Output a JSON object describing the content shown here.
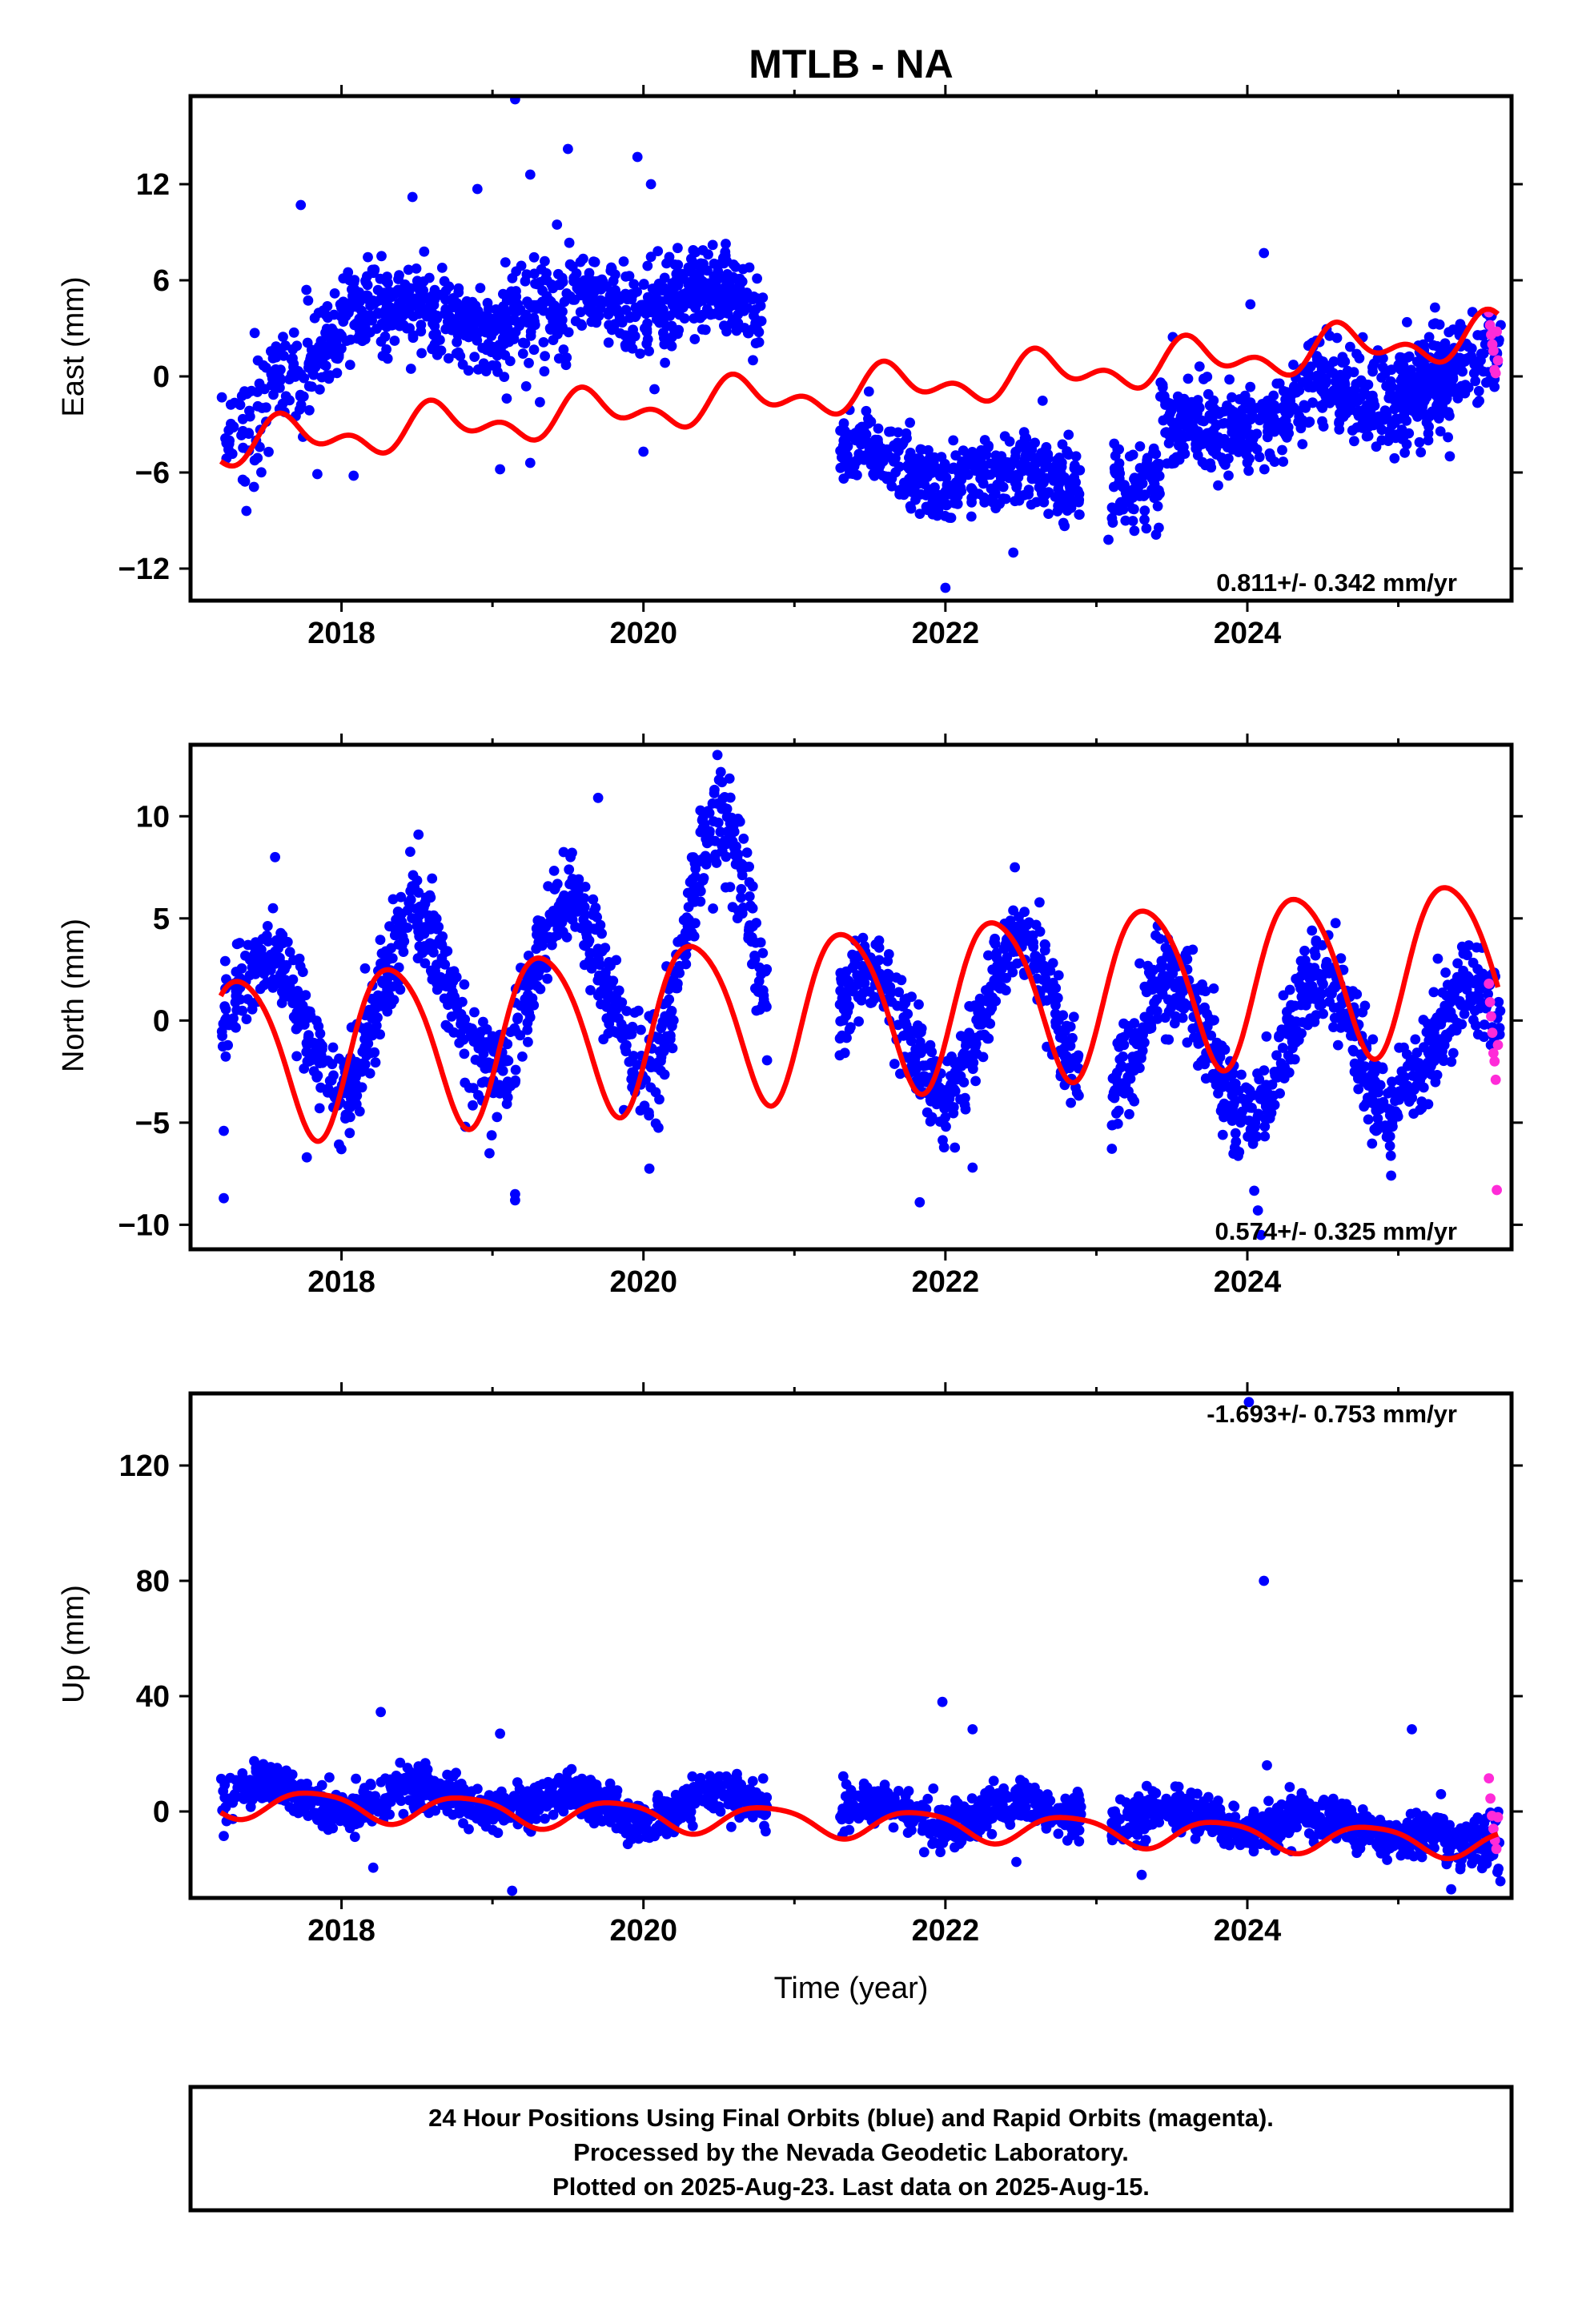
{
  "chart_data": {
    "type": "scatter",
    "title": "MTLB - NA",
    "xlabel": "Time (year)",
    "xlim": [
      2017.0,
      2025.75
    ],
    "xticks": [
      2018,
      2020,
      2022,
      2024
    ],
    "panels": [
      {
        "ylabel": "East (mm)",
        "ylim": [
          -14.0,
          17.5
        ],
        "yticks": [
          -12,
          -6,
          0,
          6,
          12
        ],
        "ytick_labels": [
          "−12",
          "−6",
          "0",
          "6",
          "12"
        ],
        "rate": "0.811+/- 0.342 mm/yr",
        "rate_position": "bottom-right",
        "segments": [
          {
            "start": 2017.2,
            "end": 2017.52,
            "trend": [
              -4.0,
              -2.0
            ],
            "amp": 0.0,
            "phase": 0.0,
            "noise": 1.9,
            "n": 50
          },
          {
            "start": 2017.52,
            "end": 2018.0,
            "trend": [
              -0.5,
              2.5
            ],
            "amp": 0.6,
            "phase": 0.5,
            "noise": 1.6,
            "n": 120
          },
          {
            "start": 2018.0,
            "end": 2019.5,
            "trend": [
              4.0,
              3.5
            ],
            "amp": 0.8,
            "phase": 0.4,
            "noise": 1.5,
            "n": 430
          },
          {
            "start": 2019.5,
            "end": 2020.82,
            "trend": [
              4.8,
              4.5
            ],
            "amp": 0.8,
            "phase": 0.4,
            "noise": 1.4,
            "n": 390
          },
          {
            "start": 2021.3,
            "end": 2022.9,
            "trend": [
              -5.3,
              -6.6
            ],
            "amp": 0.9,
            "phase": 0.2,
            "noise": 1.2,
            "n": 440
          },
          {
            "start": 2023.1,
            "end": 2023.42,
            "trend": [
              -7.0,
              -6.6
            ],
            "amp": 0.0,
            "phase": 0.0,
            "noise": 1.2,
            "n": 100
          },
          {
            "start": 2023.42,
            "end": 2024.4,
            "trend": [
              -3.2,
              -2.4
            ],
            "amp": 0.8,
            "phase": 0.4,
            "noise": 1.3,
            "n": 290
          },
          {
            "start": 2024.4,
            "end": 2025.4,
            "trend": [
              -0.8,
              -1.5
            ],
            "amp": 0.8,
            "phase": 0.4,
            "noise": 1.4,
            "n": 280
          },
          {
            "start": 2025.0,
            "end": 2025.68,
            "trend": [
              -0.3,
              1.8
            ],
            "amp": 0.0,
            "phase": 0.0,
            "noise": 1.3,
            "n": 170
          }
        ],
        "outliers": [
          {
            "x": 2019.15,
            "y": 17.3
          },
          {
            "x": 2019.5,
            "y": 14.2
          },
          {
            "x": 2019.96,
            "y": 13.7
          },
          {
            "x": 2019.25,
            "y": 12.6
          },
          {
            "x": 2018.9,
            "y": 11.7
          },
          {
            "x": 2018.47,
            "y": 11.2
          },
          {
            "x": 2017.73,
            "y": 10.7
          },
          {
            "x": 2020.05,
            "y": 12.0
          },
          {
            "x": 2024.11,
            "y": 7.7
          },
          {
            "x": 2024.02,
            "y": 4.5
          },
          {
            "x": 2017.37,
            "y": -8.4
          },
          {
            "x": 2022.0,
            "y": -13.2
          },
          {
            "x": 2022.45,
            "y": -11.0
          },
          {
            "x": 2023.08,
            "y": -10.2
          },
          {
            "x": 2017.84,
            "y": -6.1
          },
          {
            "x": 2019.05,
            "y": -5.8
          },
          {
            "x": 2019.25,
            "y": -5.4
          },
          {
            "x": 2020.0,
            "y": -4.7
          },
          {
            "x": 2017.42,
            "y": -6.9
          },
          {
            "x": 2018.08,
            "y": -6.2
          }
        ],
        "rapid": {
          "start": 2025.6,
          "end": 2025.66,
          "values": [
            4.0,
            3.2,
            2.6,
            2.0,
            1.6,
            0.4,
            0.2,
            2.8,
            1.0
          ]
        },
        "model": {
          "a": -4.0,
          "b": 0.811,
          "c": -0.3,
          "s1": -0.8,
          "c1": -0.6,
          "s2": 0.6,
          "c2": 0.5,
          "steps": [
            {
              "t": 2017.52,
              "dy": 0.0
            }
          ]
        }
      },
      {
        "ylabel": "North (mm)",
        "ylim": [
          -11.2,
          13.5
        ],
        "yticks": [
          -10,
          -5,
          0,
          5,
          10
        ],
        "ytick_labels": [
          "−10",
          "−5",
          "0",
          "5",
          "10"
        ],
        "rate": "0.574+/- 0.325 mm/yr",
        "rate_position": "bottom-right",
        "segments": [
          {
            "start": 2017.2,
            "end": 2018.0,
            "trend": [
              0.0,
              0.0
            ],
            "amp": 3.2,
            "phase": 0.0,
            "noise": 1.1,
            "n": 200
          },
          {
            "start": 2018.0,
            "end": 2019.0,
            "trend": [
              0.9,
              0.9
            ],
            "amp": 4.2,
            "phase": 0.0,
            "noise": 1.2,
            "n": 280
          },
          {
            "start": 2019.0,
            "end": 2020.0,
            "trend": [
              1.8,
              1.8
            ],
            "amp": 3.9,
            "phase": 0.0,
            "noise": 1.2,
            "n": 270
          },
          {
            "start": 2020.0,
            "end": 2020.82,
            "trend": [
              3.4,
              3.4
            ],
            "amp": 6.4,
            "phase": 0.0,
            "noise": 1.3,
            "n": 230
          },
          {
            "start": 2021.3,
            "end": 2022.0,
            "trend": [
              -0.6,
              -0.6
            ],
            "amp": 3.0,
            "phase": 0.0,
            "noise": 1.1,
            "n": 200
          },
          {
            "start": 2022.0,
            "end": 2022.9,
            "trend": [
              0.0,
              0.0
            ],
            "amp": 3.6,
            "phase": 0.0,
            "noise": 1.1,
            "n": 250
          },
          {
            "start": 2023.1,
            "end": 2024.0,
            "trend": [
              -1.2,
              -1.2
            ],
            "amp": 3.4,
            "phase": 0.0,
            "noise": 1.2,
            "n": 260
          },
          {
            "start": 2024.0,
            "end": 2025.0,
            "trend": [
              -1.4,
              -1.4
            ],
            "amp": 3.5,
            "phase": 0.0,
            "noise": 1.2,
            "n": 290
          },
          {
            "start": 2025.0,
            "end": 2025.68,
            "trend": [
              -0.9,
              -0.9
            ],
            "amp": 2.3,
            "phase": 0.0,
            "noise": 1.2,
            "n": 190
          }
        ],
        "outliers": [
          {
            "x": 2017.22,
            "y": -8.7
          },
          {
            "x": 2017.22,
            "y": -5.4
          },
          {
            "x": 2019.15,
            "y": -8.8
          },
          {
            "x": 2019.15,
            "y": -8.5
          },
          {
            "x": 2018.98,
            "y": -6.5
          },
          {
            "x": 2018.82,
            "y": -5.2
          },
          {
            "x": 2021.83,
            "y": -8.9
          },
          {
            "x": 2024.09,
            "y": -10.5
          },
          {
            "x": 2024.07,
            "y": -9.3
          },
          {
            "x": 2017.56,
            "y": 8.0
          },
          {
            "x": 2018.51,
            "y": 9.1
          },
          {
            "x": 2019.7,
            "y": 10.9
          },
          {
            "x": 2020.49,
            "y": 13.0
          },
          {
            "x": 2022.46,
            "y": 7.5
          },
          {
            "x": 2017.77,
            "y": -6.7
          },
          {
            "x": 2019.98,
            "y": -4.4
          },
          {
            "x": 2022.18,
            "y": -7.2
          }
        ],
        "rapid": {
          "start": 2025.6,
          "end": 2025.66,
          "values": [
            1.8,
            0.9,
            0.2,
            -0.6,
            -1.6,
            -2.0,
            -2.9,
            -8.3,
            -1.2
          ]
        },
        "model": {
          "a": -0.9,
          "b": 0.574,
          "c": -0.9,
          "s1": 3.5,
          "c1": -2.0,
          "s2": 0.5,
          "c2": 0.0,
          "steps": []
        }
      },
      {
        "ylabel": "Up (mm)",
        "ylim": [
          -30.0,
          145.0
        ],
        "yticks": [
          0,
          40,
          80,
          120
        ],
        "ytick_labels": [
          "0",
          "40",
          "80",
          "120"
        ],
        "rate": "-1.693+/- 0.753 mm/yr",
        "rate_position": "top-right",
        "segments": [
          {
            "start": 2017.2,
            "end": 2018.0,
            "trend": [
              5.5,
              5.5
            ],
            "amp": 4.5,
            "phase": 0.0,
            "noise": 3.6,
            "n": 210
          },
          {
            "start": 2018.0,
            "end": 2019.2,
            "trend": [
              4.5,
              4.5
            ],
            "amp": 4.5,
            "phase": 0.0,
            "noise": 3.6,
            "n": 330
          },
          {
            "start": 2019.2,
            "end": 2020.82,
            "trend": [
              2.0,
              2.0
            ],
            "amp": 5.0,
            "phase": 0.0,
            "noise": 3.8,
            "n": 440
          },
          {
            "start": 2021.3,
            "end": 2022.9,
            "trend": [
              -1.0,
              -1.0
            ],
            "amp": 4.0,
            "phase": 0.0,
            "noise": 3.6,
            "n": 430
          },
          {
            "start": 2023.1,
            "end": 2024.4,
            "trend": [
              -3.0,
              -3.0
            ],
            "amp": 4.0,
            "phase": 0.0,
            "noise": 3.7,
            "n": 360
          },
          {
            "start": 2024.4,
            "end": 2025.3,
            "trend": [
              -6.0,
              -6.0
            ],
            "amp": 3.8,
            "phase": 0.0,
            "noise": 3.6,
            "n": 250
          },
          {
            "start": 2025.3,
            "end": 2025.68,
            "trend": [
              -11.5,
              -11.5
            ],
            "amp": 0.0,
            "phase": 0.0,
            "noise": 4.5,
            "n": 110
          }
        ],
        "outliers": [
          {
            "x": 2024.01,
            "y": 142.0
          },
          {
            "x": 2024.11,
            "y": 80.0
          },
          {
            "x": 2018.26,
            "y": 34.5
          },
          {
            "x": 2021.98,
            "y": 38.0
          },
          {
            "x": 2022.18,
            "y": 28.5
          },
          {
            "x": 2025.09,
            "y": 28.5
          },
          {
            "x": 2019.05,
            "y": 27.0
          },
          {
            "x": 2024.13,
            "y": 16.0
          },
          {
            "x": 2019.13,
            "y": -27.5
          },
          {
            "x": 2018.21,
            "y": -19.5
          },
          {
            "x": 2017.22,
            "y": -8.5
          },
          {
            "x": 2022.47,
            "y": -17.5
          },
          {
            "x": 2023.3,
            "y": -22.0
          },
          {
            "x": 2025.35,
            "y": -27.0
          }
        ],
        "rapid": {
          "start": 2025.6,
          "end": 2025.66,
          "values": [
            11.5,
            4.5,
            -1.5,
            -6.0,
            -10.0,
            -13.0,
            -2.0
          ]
        },
        "model": {
          "a": 3.5,
          "b": -1.693,
          "c": -0.3,
          "s1": -4.5,
          "c1": 2.0,
          "s2": 0.8,
          "c2": 0.4,
          "steps": []
        }
      }
    ],
    "colors": {
      "final": "#0000ff",
      "rapid": "#ff2bd8",
      "model": "#ff0000",
      "frame": "#000000"
    }
  },
  "footer": {
    "lines": [
      "24 Hour Positions Using Final Orbits (blue) and Rapid Orbits (magenta).",
      "Processed by the Nevada Geodetic Laboratory.",
      "Plotted on 2025-Aug-23. Last data on 2025-Aug-15."
    ]
  }
}
